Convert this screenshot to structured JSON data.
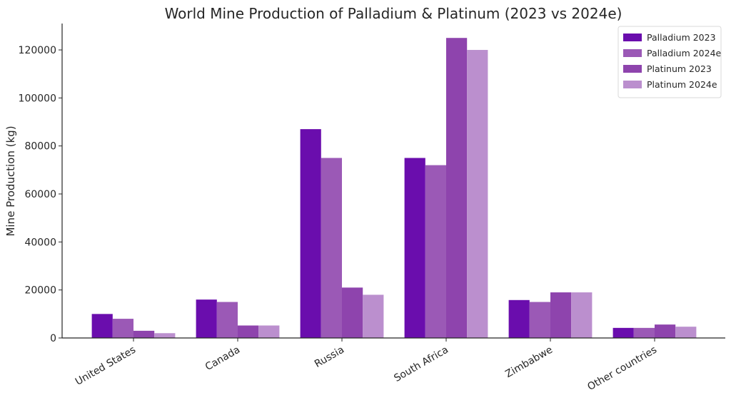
{
  "chart_data": {
    "type": "bar",
    "title": "World Mine Production of Palladium & Platinum (2023 vs 2024e)",
    "xlabel": "",
    "ylabel": "Mine Production (kg)",
    "ylim": [
      0,
      131000
    ],
    "yticks": [
      0,
      20000,
      40000,
      60000,
      80000,
      100000,
      120000
    ],
    "grid": false,
    "legend_position": "top-right",
    "categories": [
      "United States",
      "Canada",
      "Russia",
      "South Africa",
      "Zimbabwe",
      "Other countries"
    ],
    "series": [
      {
        "name": "Palladium 2023",
        "color": "#6a0dad",
        "values": [
          10000,
          16000,
          87000,
          75000,
          15800,
          4200
        ]
      },
      {
        "name": "Palladium 2024e",
        "color": "#9b59b6",
        "values": [
          8000,
          15000,
          75000,
          72000,
          15000,
          4200
        ]
      },
      {
        "name": "Platinum 2023",
        "color": "#8e44ad",
        "values": [
          3000,
          5200,
          21000,
          125000,
          19000,
          5600
        ]
      },
      {
        "name": "Platinum 2024e",
        "color": "#bb8fce",
        "values": [
          2000,
          5200,
          18000,
          120000,
          19000,
          4700
        ]
      }
    ]
  }
}
